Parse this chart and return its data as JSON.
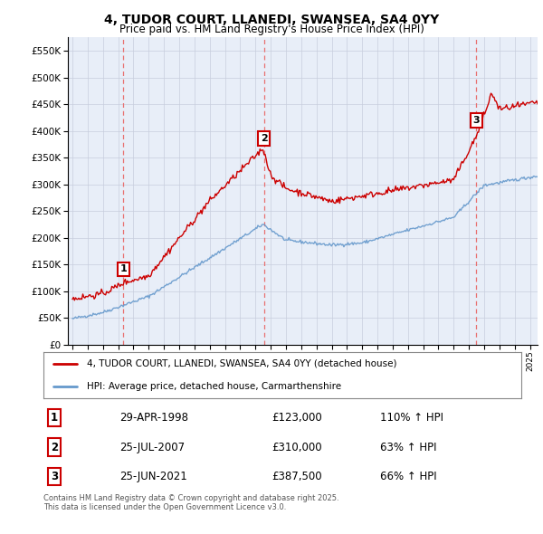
{
  "title": "4, TUDOR COURT, LLANEDI, SWANSEA, SA4 0YY",
  "subtitle": "Price paid vs. HM Land Registry's House Price Index (HPI)",
  "transactions": [
    {
      "date": 1998.33,
      "price": 123000,
      "label": "1"
    },
    {
      "date": 2007.56,
      "price": 310000,
      "label": "2"
    },
    {
      "date": 2021.48,
      "price": 387500,
      "label": "3"
    }
  ],
  "transaction_details": [
    {
      "num": "1",
      "date_str": "29-APR-1998",
      "price_str": "£123,000",
      "pct": "110% ↑ HPI"
    },
    {
      "num": "2",
      "date_str": "25-JUL-2007",
      "price_str": "£310,000",
      "pct": "63% ↑ HPI"
    },
    {
      "num": "3",
      "date_str": "25-JUN-2021",
      "price_str": "£387,500",
      "pct": "66% ↑ HPI"
    }
  ],
  "legend_line1": "4, TUDOR COURT, LLANEDI, SWANSEA, SA4 0YY (detached house)",
  "legend_line2": "HPI: Average price, detached house, Carmarthenshire",
  "footer": "Contains HM Land Registry data © Crown copyright and database right 2025.\nThis data is licensed under the Open Government Licence v3.0.",
  "price_line_color": "#cc0000",
  "hpi_line_color": "#6699cc",
  "vline_color": "#e87070",
  "background_color": "#e8eef8",
  "grid_color": "#c8cedd",
  "ylim": [
    0,
    575000
  ],
  "yticks": [
    0,
    50000,
    100000,
    150000,
    200000,
    250000,
    300000,
    350000,
    400000,
    450000,
    500000,
    550000
  ],
  "xlim_start": 1994.7,
  "xlim_end": 2025.5
}
